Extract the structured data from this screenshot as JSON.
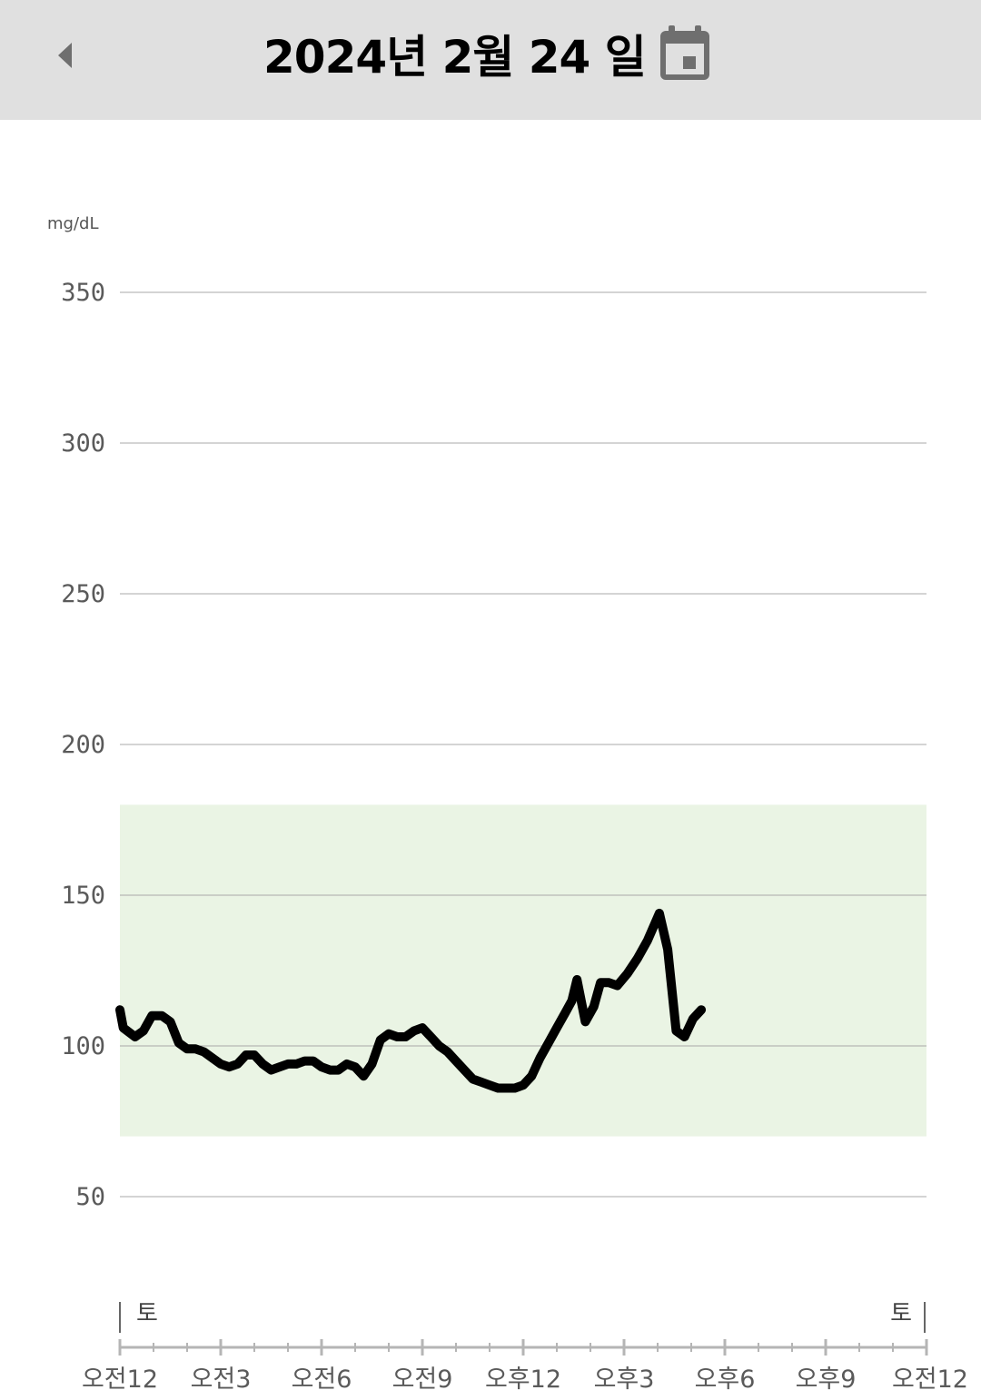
{
  "header": {
    "title": "2024년 2월 24 일",
    "back_icon": "back-arrow-icon",
    "calendar_icon": "calendar-icon",
    "background": "#e0e0e0"
  },
  "chart_data": {
    "type": "line",
    "unit_label": "mg/dL",
    "ylim": [
      0,
      350
    ],
    "yticks": [
      50,
      100,
      150,
      200,
      250,
      300,
      350
    ],
    "target_range": [
      70,
      180
    ],
    "target_color": "#eaf4e4",
    "line_color": "#000000",
    "grid": true,
    "day_label_left": "토",
    "day_label_right": "토",
    "xticks": [
      {
        "hour": 0,
        "label": "오전12"
      },
      {
        "hour": 3,
        "label": "오전3"
      },
      {
        "hour": 6,
        "label": "오전6"
      },
      {
        "hour": 9,
        "label": "오전9"
      },
      {
        "hour": 12,
        "label": "오후12"
      },
      {
        "hour": 15,
        "label": "오후3"
      },
      {
        "hour": 18,
        "label": "오후6"
      },
      {
        "hour": 21,
        "label": "오후9"
      },
      {
        "hour": 24,
        "label": "오전12"
      }
    ],
    "series": [
      {
        "points": [
          [
            0.0,
            112
          ],
          [
            0.1,
            106
          ],
          [
            0.45,
            103
          ],
          [
            0.7,
            105
          ],
          [
            0.95,
            110
          ],
          [
            1.25,
            110
          ],
          [
            1.5,
            108
          ],
          [
            1.75,
            101
          ],
          [
            2.0,
            99
          ],
          [
            2.25,
            99
          ],
          [
            2.5,
            98
          ],
          [
            2.75,
            96
          ],
          [
            3.0,
            94
          ],
          [
            3.25,
            93
          ],
          [
            3.5,
            94
          ],
          [
            3.75,
            97
          ],
          [
            4.0,
            97
          ],
          [
            4.25,
            94
          ],
          [
            4.5,
            92
          ],
          [
            4.75,
            93
          ],
          [
            5.0,
            94
          ],
          [
            5.25,
            94
          ],
          [
            5.5,
            95
          ],
          [
            5.75,
            95
          ],
          [
            6.0,
            93
          ],
          [
            6.25,
            92
          ],
          [
            6.5,
            92
          ],
          [
            6.75,
            94
          ],
          [
            7.0,
            93
          ],
          [
            7.25,
            90
          ],
          [
            7.5,
            94
          ],
          [
            7.75,
            102
          ],
          [
            8.0,
            104
          ],
          [
            8.25,
            103
          ],
          [
            8.5,
            103
          ],
          [
            8.75,
            105
          ],
          [
            9.0,
            106
          ],
          [
            9.25,
            103
          ],
          [
            9.5,
            100
          ],
          [
            9.75,
            98
          ],
          [
            10.0,
            95
          ],
          [
            10.25,
            92
          ],
          [
            10.5,
            89
          ],
          [
            10.75,
            88
          ],
          [
            11.0,
            87
          ],
          [
            11.25,
            86
          ],
          [
            11.5,
            86
          ],
          [
            11.75,
            86
          ],
          [
            12.0,
            87
          ],
          [
            12.25,
            90
          ],
          [
            12.5,
            96
          ],
          [
            12.75,
            101
          ],
          [
            13.0,
            106
          ],
          [
            13.25,
            111
          ],
          [
            13.45,
            115
          ],
          [
            13.6,
            122
          ],
          [
            13.85,
            108
          ],
          [
            14.1,
            113
          ],
          [
            14.3,
            121
          ],
          [
            14.55,
            121
          ],
          [
            14.8,
            120
          ],
          [
            15.1,
            124
          ],
          [
            15.4,
            129
          ],
          [
            15.7,
            135
          ],
          [
            16.05,
            144
          ],
          [
            16.3,
            132
          ],
          [
            16.55,
            105
          ],
          [
            16.8,
            103
          ],
          [
            17.05,
            109
          ],
          [
            17.3,
            112
          ]
        ]
      }
    ]
  }
}
